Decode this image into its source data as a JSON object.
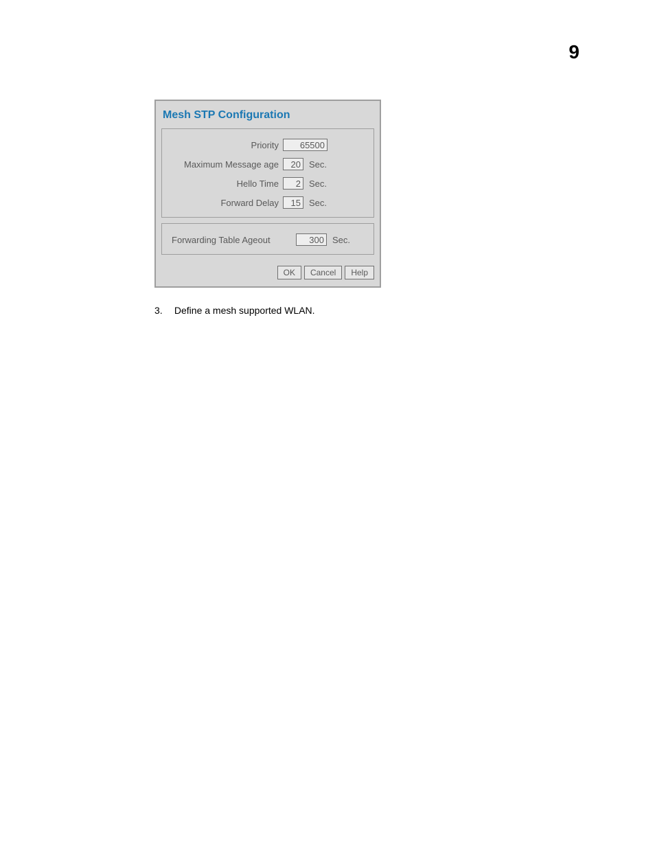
{
  "page_number": "9",
  "dialog": {
    "title": "Mesh STP Configuration",
    "group1": {
      "priority_label": "Priority",
      "priority_value": "65500",
      "maxmsg_label": "Maximum Message age",
      "maxmsg_value": "20",
      "hello_label": "Hello Time",
      "hello_value": "2",
      "fwdelay_label": "Forward Delay",
      "fwdelay_value": "15",
      "sec_unit": "Sec."
    },
    "group2": {
      "ageout_label": "Forwarding Table Ageout",
      "ageout_value": "300",
      "sec_unit": "Sec."
    },
    "buttons": {
      "ok": "OK",
      "cancel": "Cancel",
      "help": "Help"
    }
  },
  "instruction": {
    "number": "3.",
    "text": "Define a mesh supported WLAN."
  }
}
